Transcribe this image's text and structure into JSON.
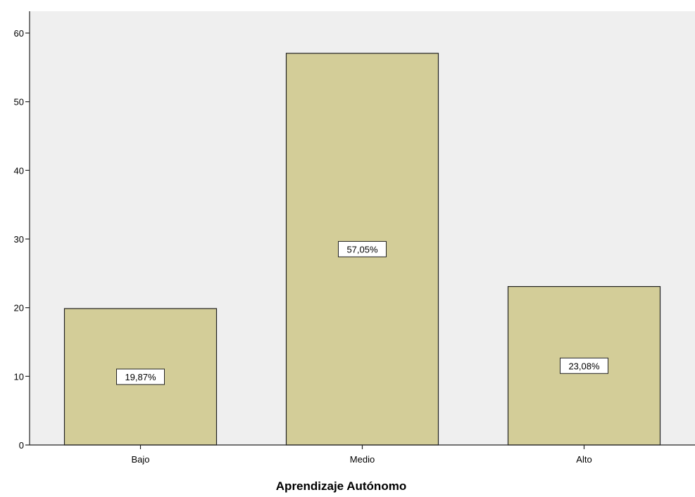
{
  "chart_data": {
    "type": "bar",
    "title": "",
    "xlabel": "Aprendizaje Autónomo",
    "ylabel": "",
    "categories": [
      "Bajo",
      "Medio",
      "Alto"
    ],
    "values": [
      19.87,
      57.05,
      23.08
    ],
    "data_labels": [
      "19,87%",
      "57,05%",
      "23,08%"
    ],
    "ylim": [
      0,
      63
    ],
    "yticks": [
      0,
      10,
      20,
      30,
      40,
      50,
      60
    ],
    "grid": false,
    "legend": "none"
  },
  "colors": {
    "plot_background": "#efefef",
    "bar_fill": "#d3cd98",
    "bar_stroke": "#222222",
    "axis": "#222222",
    "label_box_fill": "#ffffff"
  }
}
